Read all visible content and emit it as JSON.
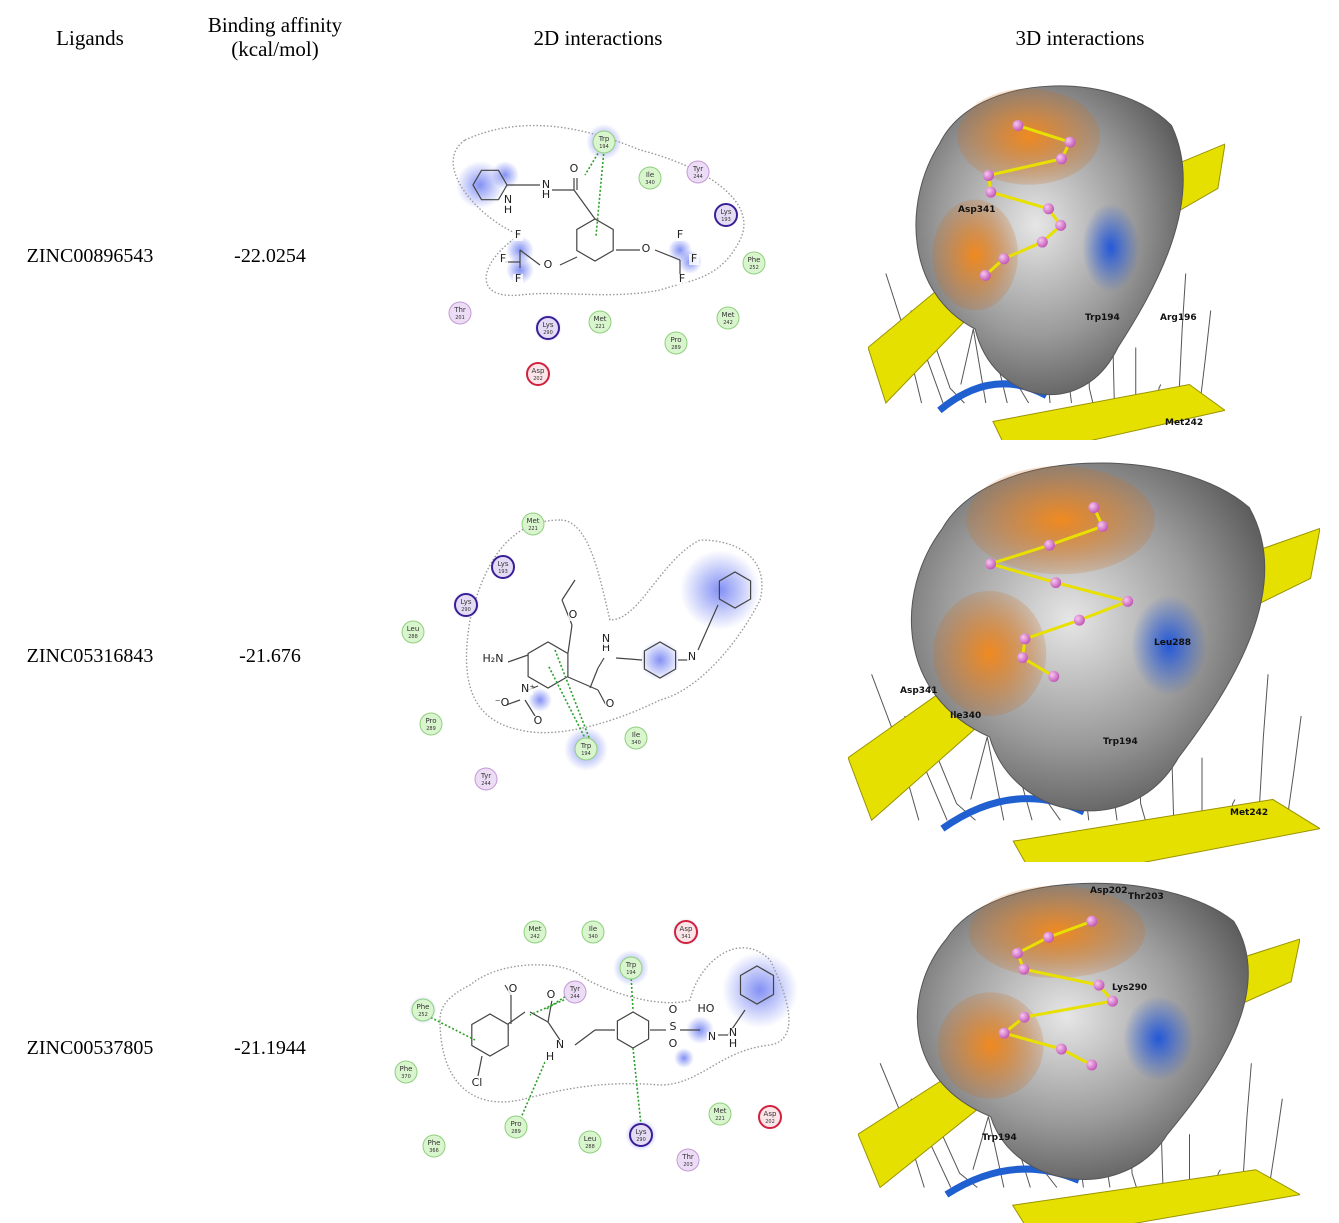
{
  "header": {
    "ligands": "Ligands",
    "affinity": {
      "label": "Binding affinity",
      "unit": "(kcal/mol)"
    },
    "view2d": "2D interactions",
    "view3d": "3D interactions"
  },
  "table": {
    "rows": [
      {
        "ligand": "ZINC00896543",
        "affinity": -22.0254,
        "residues": [
          {
            "name": "Trp",
            "number": "194",
            "kind": "green"
          },
          {
            "name": "Ile",
            "number": "340",
            "kind": "green"
          },
          {
            "name": "Tyr",
            "number": "244",
            "kind": "purple"
          },
          {
            "name": "Lys",
            "number": "193",
            "kind": "charged"
          },
          {
            "name": "Phe",
            "number": "252",
            "kind": "green"
          },
          {
            "name": "Met",
            "number": "242",
            "kind": "green"
          },
          {
            "name": "Pro",
            "number": "289",
            "kind": "green"
          },
          {
            "name": "Met",
            "number": "221",
            "kind": "green"
          },
          {
            "name": "Lys",
            "number": "290",
            "kind": "charged"
          },
          {
            "name": "Thr",
            "number": "201",
            "kind": "purple"
          },
          {
            "name": "Asp",
            "number": "202",
            "kind": "acidic"
          }
        ],
        "atoms": [
          "H",
          "N",
          "N",
          "H",
          "O",
          "O",
          "O",
          "F",
          "F",
          "F",
          "F",
          "F",
          "F"
        ],
        "labels3d": [
          "Trp194",
          "Arg196",
          "Met242",
          "Asp341"
        ]
      },
      {
        "ligand": "ZINC05316843",
        "affinity": -21.676,
        "residues": [
          {
            "name": "Met",
            "number": "221",
            "kind": "green"
          },
          {
            "name": "Lys",
            "number": "193",
            "kind": "charged"
          },
          {
            "name": "Lys",
            "number": "290",
            "kind": "charged"
          },
          {
            "name": "Leu",
            "number": "288",
            "kind": "green"
          },
          {
            "name": "Pro",
            "number": "289",
            "kind": "green"
          },
          {
            "name": "Tyr",
            "number": "244",
            "kind": "purple"
          },
          {
            "name": "Trp",
            "number": "194",
            "kind": "green"
          },
          {
            "name": "Ile",
            "number": "340",
            "kind": "green"
          }
        ],
        "atoms": [
          "H₂N",
          "O",
          "H",
          "N",
          "O",
          "N⁺",
          "⁻O",
          "O",
          "N"
        ],
        "labels3d": [
          "Asp341",
          "Trp194",
          "Leu288",
          "Ile340",
          "Met242"
        ]
      },
      {
        "ligand": "ZINC00537805",
        "affinity": -21.1944,
        "residues": [
          {
            "name": "Met",
            "number": "242",
            "kind": "green"
          },
          {
            "name": "Ile",
            "number": "340",
            "kind": "green"
          },
          {
            "name": "Asp",
            "number": "341",
            "kind": "acidic"
          },
          {
            "name": "Trp",
            "number": "194",
            "kind": "green"
          },
          {
            "name": "Tyr",
            "number": "244",
            "kind": "purple"
          },
          {
            "name": "Phe",
            "number": "252",
            "kind": "green"
          },
          {
            "name": "Phe",
            "number": "370",
            "kind": "green"
          },
          {
            "name": "Asp",
            "number": "202",
            "kind": "acidic"
          },
          {
            "name": "Met",
            "number": "221",
            "kind": "green"
          },
          {
            "name": "Pro",
            "number": "289",
            "kind": "green"
          },
          {
            "name": "Leu",
            "number": "288",
            "kind": "green"
          },
          {
            "name": "Lys",
            "number": "290",
            "kind": "charged"
          },
          {
            "name": "Thr",
            "number": "203",
            "kind": "purple"
          },
          {
            "name": "Phe",
            "number": "366",
            "kind": "green"
          }
        ],
        "atoms": [
          "Cl",
          "O",
          "O",
          "N",
          "H",
          "S",
          "O",
          "O",
          "N",
          "HO",
          "N",
          "H"
        ],
        "labels3d": [
          "Asp202",
          "Thr203",
          "Trp194",
          "Lys290"
        ]
      }
    ]
  }
}
